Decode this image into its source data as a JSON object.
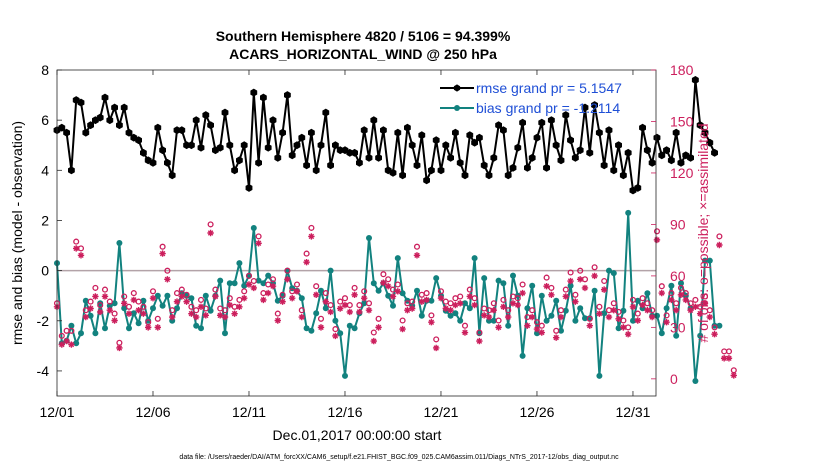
{
  "titles": {
    "line1": "Southern Hemisphere 4820 / 5106 = 94.399%",
    "line2": "ACARS_HORIZONTAL_WIND @ 250 hPa"
  },
  "footer": "data file: /Users/raeder/DAI/ATM_forcXX/CAM6_setup/f.e21.FHIST_BGC.f09_025.CAM6assim.011/Diags_NTrS_2017-12/obs_diag_output.nc",
  "chart_data": {
    "type": "line",
    "title": "Southern Hemisphere 4820 / 5106 = 94.399%",
    "subtitle": "ACARS_HORIZONTAL_WIND @ 250 hPa",
    "xlabel": "Dec.01,2017 00:00:00 start",
    "ylabel_left": "rmse and bias (model - observation)",
    "ylabel_right": "# of obs: o=possible; ×=assimilated",
    "xlim": [
      0,
      31.2
    ],
    "ylim_left": [
      -5,
      8
    ],
    "ylim_right": [
      -10,
      180
    ],
    "x_ticks": [
      {
        "x": 0,
        "label": "12/01"
      },
      {
        "x": 5,
        "label": "12/06"
      },
      {
        "x": 10,
        "label": "12/11"
      },
      {
        "x": 15,
        "label": "12/16"
      },
      {
        "x": 20,
        "label": "12/21"
      },
      {
        "x": 25,
        "label": "12/26"
      },
      {
        "x": 30,
        "label": "12/31"
      }
    ],
    "y_ticks_left": [
      -4,
      -2,
      0,
      2,
      4,
      6,
      8
    ],
    "y_ticks_right": [
      0,
      30,
      60,
      90,
      120,
      150,
      180
    ],
    "legend": [
      {
        "label": "rmse grand pr = 5.1547",
        "color": "#000000"
      },
      {
        "label": "bias grand pr = -1.2114",
        "color": "#12827f"
      }
    ],
    "colors": {
      "rmse": "#000000",
      "bias": "#12827f",
      "obs": "#cc1f5d",
      "zero": "#b3a3a8"
    },
    "x_step": 0.25,
    "series": [
      {
        "name": "rmse",
        "axis": "left",
        "values": [
          5.6,
          5.7,
          5.5,
          4.0,
          6.8,
          6.7,
          5.5,
          5.8,
          6.0,
          6.1,
          6.9,
          6.0,
          6.5,
          5.8,
          6.5,
          5.5,
          5.3,
          5.2,
          4.7,
          4.4,
          4.3,
          5.7,
          4.8,
          4.3,
          3.8,
          5.6,
          5.6,
          5.0,
          5.0,
          6.0,
          4.9,
          6.2,
          5.8,
          4.8,
          4.9,
          6.3,
          5.0,
          4.0,
          4.4,
          5.0,
          3.3,
          7.1,
          4.3,
          6.9,
          4.9,
          6.0,
          4.5,
          5.5,
          7.0,
          4.6,
          5.0,
          5.3,
          4.2,
          5.5,
          4.0,
          5.0,
          6.3,
          4.2,
          5.0,
          4.8,
          4.8,
          4.7,
          4.7,
          4.3,
          5.6,
          4.5,
          6.0,
          4.5,
          5.6,
          4.0,
          3.9,
          5.5,
          3.8,
          5.7,
          5.0,
          4.2,
          5.4,
          3.6,
          4.0,
          5.2,
          4.0,
          5.0,
          4.5,
          5.5,
          4.3,
          3.8,
          5.4,
          5.1,
          5.3,
          4.2,
          3.8,
          4.5,
          5.8,
          5.6,
          3.8,
          4.1,
          4.9,
          5.9,
          4.1,
          4.5,
          5.3,
          5.9,
          4.1,
          6.0,
          5.0,
          4.4,
          6.2,
          5.2,
          4.5,
          4.8,
          6.5,
          4.7,
          6.6,
          5.5,
          4.2,
          5.6,
          4.0,
          5.0,
          3.8,
          4.7,
          3.2,
          3.3,
          5.7,
          4.8,
          4.3,
          5.3,
          4.6,
          4.8,
          4.4,
          5.5,
          4.3,
          4.6,
          4.5,
          7.6,
          5.8,
          5.5,
          5.1,
          4.7
        ]
      },
      {
        "name": "bias",
        "axis": "left",
        "values": [
          0.3,
          -2.9,
          -2.8,
          -2.2,
          -2.9,
          -2.5,
          -1.2,
          -1.8,
          -2.5,
          -1.3,
          -2.3,
          -1.4,
          -1.3,
          1.1,
          -1.5,
          -2.3,
          -1.7,
          -2.1,
          -1.2,
          -2.0,
          -1.5,
          -1.0,
          -1.4,
          -1.0,
          -2.0,
          -1.5,
          -0.9,
          -1.0,
          -1.1,
          -2.2,
          -2.3,
          -1.0,
          -1.6,
          -1.0,
          -0.4,
          -2.5,
          -0.5,
          -0.5,
          0.3,
          -0.6,
          -0.2,
          1.7,
          -0.4,
          -0.5,
          -0.2,
          -0.5,
          -1.2,
          -1.0,
          0.0,
          -0.7,
          -0.8,
          -1.1,
          -2.3,
          -2.4,
          -1.7,
          -0.8,
          -1.5,
          0.0,
          -2.0,
          -2.5,
          -4.2,
          -2.2,
          -2.3,
          -1.7,
          -1.3,
          1.3,
          -0.5,
          -0.8,
          -0.5,
          -1.0,
          -1.4,
          0.5,
          -0.9,
          -1.2,
          -1.4,
          -0.8,
          -1.8,
          -1.2,
          -1.2,
          -0.3,
          -1.0,
          -1.6,
          -1.8,
          -1.7,
          -2.0,
          -1.3,
          -1.5,
          0.5,
          -2.5,
          -0.3,
          -2.0,
          -2.0,
          -0.4,
          -0.5,
          -2.2,
          -0.2,
          -1.0,
          -3.4,
          -1.5,
          -0.6,
          -2.5,
          -1.0,
          -2.0,
          -1.8,
          -1.2,
          -2.4,
          -1.6,
          -0.6,
          -2.0,
          -1.5,
          -1.9,
          -1.9,
          -0.8,
          -4.2,
          -1.7,
          0.0,
          -0.1,
          -2.3,
          -1.6,
          2.3,
          -2.0,
          -1.2,
          -1.5,
          -0.9,
          -1.8,
          -1.8,
          -2.5,
          -1.5,
          -0.6,
          -2.6,
          -0.5,
          -1.0,
          -1.5,
          -4.4,
          -2.6,
          0.4,
          0.4,
          -2.2,
          -2.2
        ]
      },
      {
        "name": "obs_possible",
        "axis": "right",
        "values": [
          44,
          25,
          28,
          28,
          80,
          76,
          40,
          45,
          53,
          43,
          52,
          45,
          38,
          21,
          48,
          42,
          50,
          45,
          42,
          33,
          51,
          35,
          77,
          63,
          40,
          50,
          52,
          49,
          42,
          40,
          46,
          41,
          90,
          52,
          41,
          40,
          47,
          42,
          46,
          51,
          60,
          57,
          83,
          50,
          55,
          58,
          38,
          49,
          63,
          51,
          55,
          40,
          73,
          88,
          54,
          35,
          50,
          43,
          29,
          45,
          47,
          43,
          53,
          43,
          51,
          44,
          27,
          35,
          61,
          58,
          52,
          55,
          34,
          44,
          45,
          77,
          49,
          50,
          37,
          23,
          51,
          45,
          44,
          47,
          48,
          31,
          52,
          47,
          27,
          41,
          40,
          44,
          34,
          46,
          40,
          48,
          47,
          55,
          36,
          40,
          33,
          31,
          59,
          53,
          28,
          40,
          52,
          62,
          49,
          63,
          58,
          35,
          65,
          42,
          57,
          40,
          44,
          39,
          34,
          30,
          46,
          38,
          47,
          44,
          40,
          86,
          54,
          37,
          50,
          44,
          53,
          50,
          44,
          46,
          42,
          48,
          40,
          30,
          83,
          16,
          16,
          5
        ]
      },
      {
        "name": "obs_assimilated",
        "axis": "right",
        "values": [
          42,
          20,
          22,
          20,
          76,
          72,
          36,
          41,
          48,
          39,
          48,
          40,
          34,
          18,
          44,
          38,
          46,
          40,
          38,
          30,
          47,
          30,
          73,
          58,
          36,
          45,
          48,
          45,
          38,
          36,
          42,
          37,
          85,
          48,
          37,
          36,
          43,
          38,
          42,
          47,
          55,
          53,
          79,
          46,
          50,
          54,
          34,
          45,
          58,
          47,
          51,
          36,
          68,
          83,
          49,
          30,
          45,
          39,
          25,
          41,
          43,
          39,
          49,
          39,
          47,
          40,
          22,
          30,
          56,
          54,
          48,
          51,
          29,
          40,
          41,
          72,
          45,
          46,
          33,
          18,
          47,
          41,
          40,
          43,
          44,
          27,
          48,
          43,
          22,
          37,
          36,
          40,
          30,
          42,
          36,
          44,
          43,
          50,
          31,
          36,
          29,
          27,
          54,
          49,
          24,
          36,
          48,
          57,
          45,
          58,
          53,
          31,
          60,
          38,
          52,
          36,
          40,
          35,
          30,
          26,
          42,
          34,
          43,
          40,
          36,
          81,
          50,
          33,
          46,
          40,
          49,
          46,
          40,
          42,
          38,
          44,
          36,
          26,
          78,
          12,
          12,
          2
        ]
      }
    ]
  }
}
